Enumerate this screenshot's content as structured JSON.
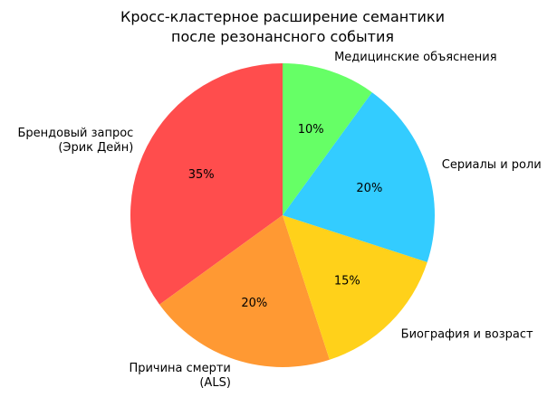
{
  "chart_data": {
    "type": "pie",
    "title": [
      "Кросс-кластерное расширение семантики",
      "после резонансного события"
    ],
    "start_angle_deg": 90,
    "direction": "counterclockwise",
    "slices": [
      {
        "label": [
          "Брендовый запрос",
          "(Эрик Дейн)"
        ],
        "value": 35,
        "pct_label": "35%",
        "color": "#ff4d4d"
      },
      {
        "label": [
          "Причина смерти",
          "(ALS)"
        ],
        "value": 20,
        "pct_label": "20%",
        "color": "#ff9933"
      },
      {
        "label": [
          "Биография и возраст"
        ],
        "value": 15,
        "pct_label": "15%",
        "color": "#ffd11a"
      },
      {
        "label": [
          "Сериалы и роли"
        ],
        "value": 20,
        "pct_label": "20%",
        "color": "#33ccff"
      },
      {
        "label": [
          "Медицинские объяснения"
        ],
        "value": 10,
        "pct_label": "10%",
        "color": "#66ff66"
      }
    ]
  }
}
